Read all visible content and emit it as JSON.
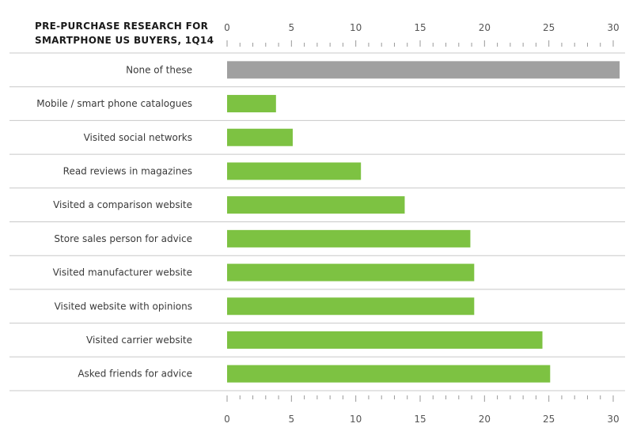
{
  "chart_data": {
    "type": "bar",
    "orientation": "horizontal",
    "title_lines": [
      "PRE-PURCHASE RESEARCH FOR",
      "SMARTPHONE US BUYERS, 1Q14"
    ],
    "categories": [
      "None of these",
      "Mobile / smart phone catalogues",
      "Visited social networks",
      "Read reviews in magazines",
      "Visited a comparison website",
      "Store sales person for advice",
      "Visited manufacturer website",
      "Visited website with opinions",
      "Visited carrier website",
      "Asked friends for advice"
    ],
    "values": [
      30.5,
      3.8,
      5.1,
      10.4,
      13.8,
      18.9,
      19.2,
      19.2,
      24.5,
      25.1
    ],
    "bar_colors": [
      "#a0a0a0",
      "#7dc242",
      "#7dc242",
      "#7dc242",
      "#7dc242",
      "#7dc242",
      "#7dc242",
      "#7dc242",
      "#7dc242",
      "#7dc242"
    ],
    "xlim": [
      0,
      30
    ],
    "x_ticks": [
      "0",
      "5",
      "10",
      "15",
      "20",
      "25",
      "30"
    ],
    "x_tick_values": [
      0,
      5,
      10,
      15,
      20,
      25,
      30
    ],
    "minor_tick_step": 1,
    "axis_position": "top-and-bottom",
    "grid": "horizontal-row-separators"
  }
}
